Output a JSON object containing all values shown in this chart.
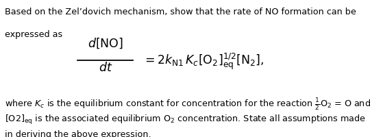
{
  "background_color": "#ffffff",
  "figsize": [
    5.4,
    2.01
  ],
  "dpi": 100,
  "text_color": "#000000",
  "font_size_body": 9.2,
  "font_size_eq": 12.5,
  "line1": "Based on the Zel’dovich mechanism, show that the rate of NO formation can be",
  "line2": "expressed as",
  "line_where": "where $K_c$ is the equilibrium constant for concentration for the reaction $\\stackrel{1}{-}$O$_2$ = O and",
  "line_o2": "[O2]$_{\\mathrm{eq}}$ is the associated equilibrium O$_2$ concentration. State all assumptions made",
  "line_last": "in deriving the above expression."
}
